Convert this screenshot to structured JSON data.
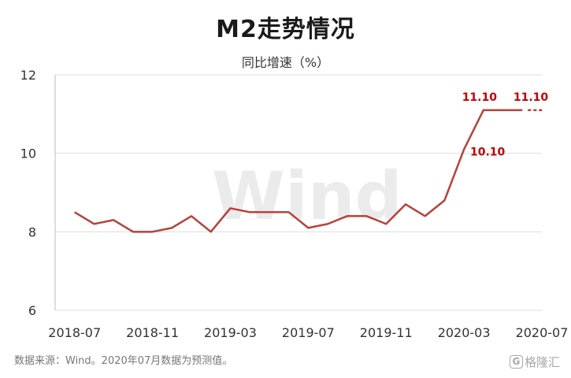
{
  "title": "M2走势情况",
  "subtitle": "同比增速（%）",
  "source_note": "数据来源：Wind。2020年07月数据为预测值。",
  "watermark": "Wind",
  "logo_text": "格隆汇",
  "logo_glyph": "G",
  "colors": {
    "line": "#b5423a",
    "label": "#c00000",
    "grid": "#dddddd"
  },
  "chart_data": {
    "type": "line",
    "title": "M2走势情况",
    "subtitle": "同比增速（%）",
    "xlabel": "",
    "ylabel": "",
    "ylim": [
      6,
      12
    ],
    "yticks": [
      6,
      8,
      10,
      12
    ],
    "grid": true,
    "xticks": [
      "2018-07",
      "2018-11",
      "2019-03",
      "2019-07",
      "2019-11",
      "2020-03",
      "2020-07"
    ],
    "x": [
      "2018-07",
      "2018-08",
      "2018-09",
      "2018-10",
      "2018-11",
      "2018-12",
      "2019-01",
      "2019-02",
      "2019-03",
      "2019-04",
      "2019-05",
      "2019-06",
      "2019-07",
      "2019-08",
      "2019-09",
      "2019-10",
      "2019-11",
      "2019-12",
      "2020-01",
      "2020-02",
      "2020-03",
      "2020-04",
      "2020-05",
      "2020-06"
    ],
    "values": [
      8.5,
      8.2,
      8.3,
      8.0,
      8.0,
      8.1,
      8.4,
      8.0,
      8.6,
      8.5,
      8.5,
      8.5,
      8.1,
      8.2,
      8.4,
      8.4,
      8.2,
      8.7,
      8.4,
      8.8,
      10.1,
      11.1,
      11.1,
      11.1
    ],
    "forecast": {
      "x": [
        "2020-06",
        "2020-07"
      ],
      "values": [
        11.1,
        11.1
      ],
      "style": "dotted"
    },
    "annotations": [
      {
        "x": "2020-03",
        "text": "10.10"
      },
      {
        "x": "2020-04",
        "text": "11.10"
      },
      {
        "x": "2020-07",
        "text": "11.10"
      }
    ]
  }
}
